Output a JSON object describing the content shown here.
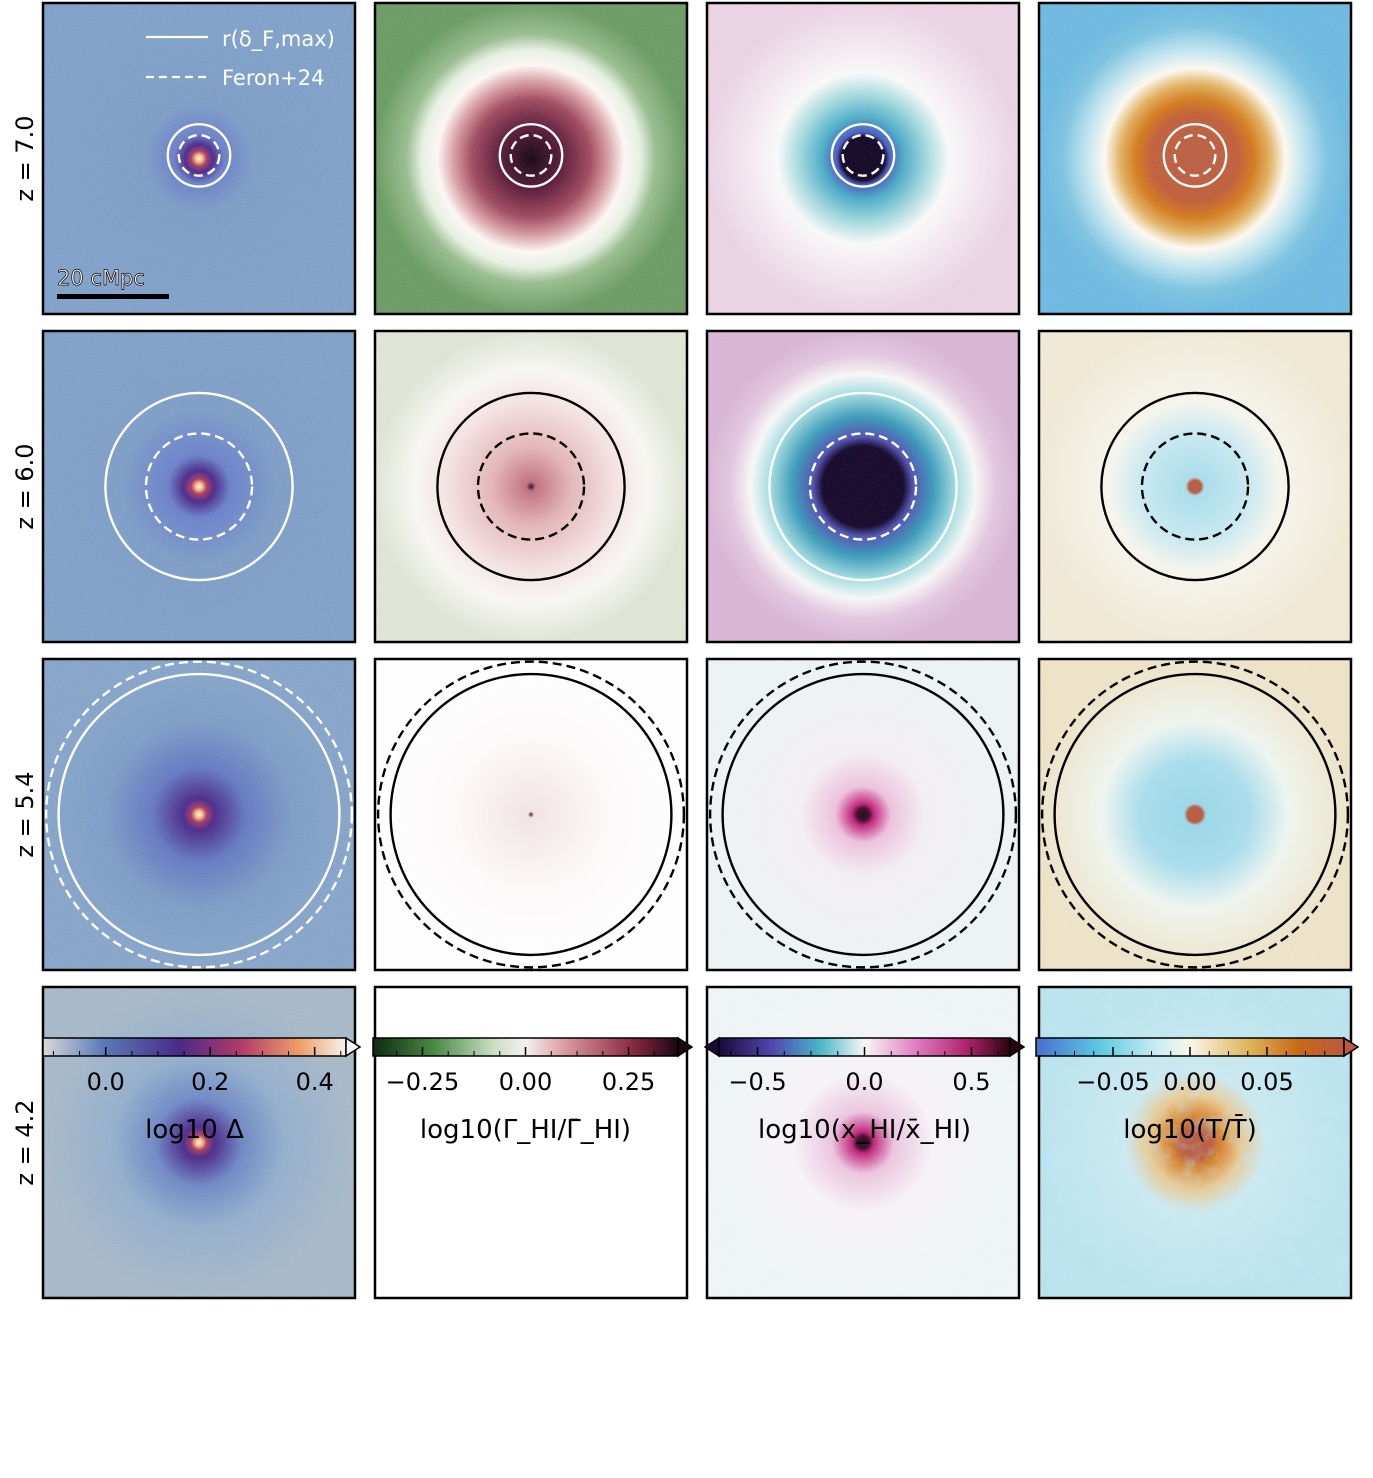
{
  "figure": {
    "rows": [
      "z = 7.0",
      "z = 6.0",
      "z = 5.4",
      "z = 4.2"
    ],
    "legend": {
      "solid": "r(δ_F,max)",
      "dashed": "Feron+24"
    },
    "scalebar": "20 cMpc"
  },
  "chart_data": {
    "type": "heatmap",
    "panels_grid": "4 rows x 4 columns",
    "rows": [
      {
        "z": 7.0,
        "r_deltaF_max_relative": 0.1,
        "feron24_relative": 0.065
      },
      {
        "z": 6.0,
        "r_deltaF_max_relative": 0.3,
        "feron24_relative": 0.17
      },
      {
        "z": 5.4,
        "r_deltaF_max_relative": 0.45,
        "feron24_relative": 0.49
      },
      {
        "z": 4.2,
        "r_deltaF_max_relative": null,
        "feron24_relative": null
      }
    ],
    "colorbars": [
      {
        "label": "log10 Δ",
        "ticks": [
          "0.0",
          "0.2",
          "0.4"
        ],
        "tick_values": [
          0.0,
          0.2,
          0.4
        ],
        "range": [
          -0.12,
          0.46
        ],
        "extend": "max",
        "colors": [
          "#d9d9d9",
          "#5a7ab8",
          "#4a2a8a",
          "#b03a6a",
          "#f0a06a",
          "#f7f3ee"
        ]
      },
      {
        "label": "log10(Γ_HI/Γ̄_HI)",
        "ticks": [
          "−0.25",
          "0.00",
          "0.25"
        ],
        "tick_values": [
          -0.25,
          0.0,
          0.25
        ],
        "range": [
          -0.37,
          0.37
        ],
        "extend": "max",
        "colors": [
          "#0f2a0f",
          "#4a8a44",
          "#cde0c6",
          "#f5f0ef",
          "#d48f95",
          "#8a2a45",
          "#1a0812"
        ]
      },
      {
        "label": "log10(x_HI/x̄_HI)",
        "ticks": [
          "−0.5",
          "0.0",
          "0.5"
        ],
        "tick_values": [
          -0.5,
          0.0,
          0.5
        ],
        "range": [
          -0.68,
          0.68
        ],
        "extend": "both",
        "colors": [
          "#1a0a38",
          "#5046b0",
          "#4ab8c8",
          "#f7f7f7",
          "#e07ac0",
          "#b0246e",
          "#2a0410"
        ]
      },
      {
        "label": "log10(T/T̄)",
        "ticks": [
          "−0.05",
          "0.00",
          "0.05"
        ],
        "tick_values": [
          -0.05,
          0.0,
          0.05
        ],
        "range": [
          -0.1,
          0.1
        ],
        "extend": "max",
        "colors": [
          "#4a6fd0",
          "#5ac8e0",
          "#cdeef4",
          "#faf6ea",
          "#e0b860",
          "#c86a14",
          "#b85a40"
        ]
      }
    ]
  },
  "colors": {
    "frame": "#000000",
    "density_bg": "#7d9cc6",
    "gamma_green": "#7aa070",
    "xhi_pink": "#e8cfe2",
    "temp_blue": "#7cc0e0"
  }
}
